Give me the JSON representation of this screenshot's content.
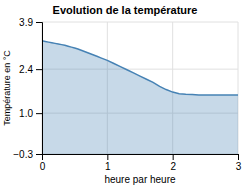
{
  "chart_data": {
    "type": "area",
    "title": "Evolution de la température",
    "x_label": "heure par heure",
    "y_label": "Température en °C",
    "x": [
      0,
      0.05,
      0.1,
      0.15,
      0.2,
      0.25,
      0.3,
      0.35,
      0.4,
      0.45,
      0.5,
      0.55,
      0.6,
      0.65,
      0.7,
      0.75,
      0.8,
      0.85,
      0.9,
      0.95,
      1.0,
      1.1,
      1.2,
      1.3,
      1.4,
      1.5,
      1.6,
      1.7,
      1.8,
      1.9,
      2.0,
      2.1,
      2.2,
      2.3,
      2.4,
      2.5,
      2.6,
      2.7,
      2.8,
      2.9,
      3.0
    ],
    "values": [
      3.3,
      3.28,
      3.26,
      3.24,
      3.22,
      3.2,
      3.18,
      3.16,
      3.13,
      3.1,
      3.07,
      3.04,
      3.0,
      2.96,
      2.92,
      2.88,
      2.84,
      2.8,
      2.76,
      2.72,
      2.68,
      2.58,
      2.48,
      2.38,
      2.28,
      2.18,
      2.08,
      1.98,
      1.85,
      1.75,
      1.67,
      1.62,
      1.6,
      1.59,
      1.58,
      1.58,
      1.58,
      1.58,
      1.58,
      1.58,
      1.58
    ],
    "xlim": [
      0,
      3
    ],
    "xticks": [
      0,
      1,
      2,
      3
    ],
    "ylim": [
      -0.3,
      3.9
    ],
    "yticks": [
      {
        "value": -0.3,
        "label": "−0.3"
      },
      {
        "value": 1.0,
        "label": "1.0"
      },
      2.4,
      3.9
    ],
    "grid": true
  }
}
